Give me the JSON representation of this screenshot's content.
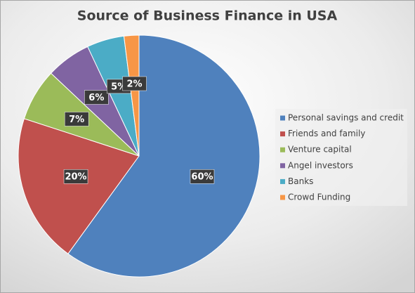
{
  "chart_data": {
    "type": "pie",
    "title": "Source of Business Finance in USA",
    "categories": [
      "Personal savings and credit",
      "Friends and family",
      "Venture capital",
      "Angel investors",
      "Banks",
      "Crowd Funding"
    ],
    "values": [
      60,
      20,
      7,
      6,
      5,
      2
    ],
    "value_labels": [
      "60%",
      "20%",
      "7%",
      "6%",
      "5%",
      "2%"
    ],
    "colors": [
      "#4f81bd",
      "#c0504d",
      "#9bbb59",
      "#8064a2",
      "#4bacc6",
      "#f79646"
    ],
    "legend": "right"
  }
}
